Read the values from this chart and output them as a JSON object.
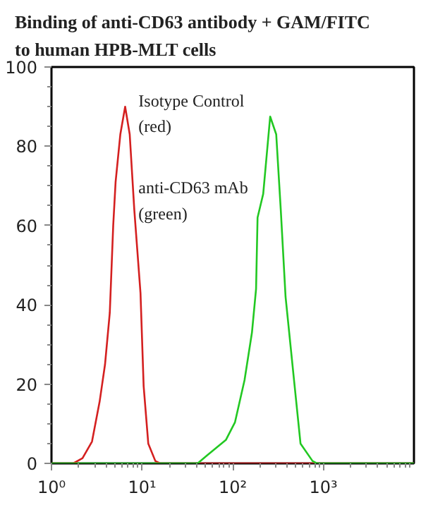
{
  "chart_data": {
    "type": "line",
    "title": "Binding of anti-CD63 antibody + GAM/FITC\nto human HPB-MLT cells",
    "annotations": [
      "Isotype Control\n(red)",
      "anti-CD63 mAb\n(green)"
    ],
    "log": "x",
    "grid": false,
    "marker": "none",
    "line_style": "solid",
    "xlim": [
      1,
      10000
    ],
    "xticks": [
      {
        "value": 1,
        "label": "10⁰"
      },
      {
        "value": 10,
        "label": "10¹"
      },
      {
        "value": 100,
        "label": "10²"
      },
      {
        "value": 1000,
        "label": "10³"
      }
    ],
    "ylim": [
      0,
      100
    ],
    "yticks": [
      0,
      20,
      40,
      60,
      80,
      100
    ],
    "series": [
      {
        "color": "#d42020",
        "x": [
          1,
          1.74,
          2.2,
          2.8,
          3.4,
          3.9,
          4.4,
          4.8,
          5.1,
          5.75,
          6.5,
          7.3,
          8.2,
          9.6,
          10.4,
          11.7,
          14,
          15.8,
          10000
        ],
        "values": [
          0,
          0,
          1.3,
          5.5,
          15.6,
          25,
          38,
          60,
          71,
          83,
          90,
          83,
          64,
          43,
          19.5,
          5,
          0.6,
          0,
          0
        ]
      },
      {
        "color": "#22c822",
        "x": [
          1,
          41,
          52,
          84,
          106,
          135,
          163,
          181,
          188,
          217,
          259,
          302,
          339,
          383,
          470,
          560,
          760,
          850,
          10000
        ],
        "values": [
          0,
          0,
          2,
          5.9,
          10.4,
          21,
          33,
          44,
          62,
          68,
          87.5,
          83,
          64,
          42,
          22,
          5,
          0.6,
          0,
          0
        ]
      }
    ]
  }
}
